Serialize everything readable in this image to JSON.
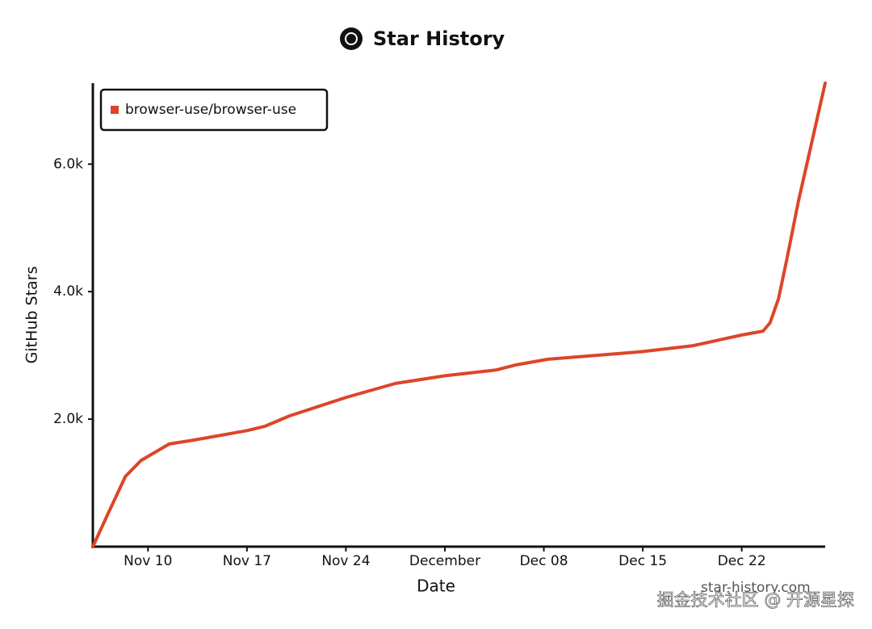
{
  "chart_data": {
    "type": "line",
    "title": "Star History",
    "x_label": "Date",
    "y_label": "GitHub Stars",
    "x": [
      6.1,
      7.2,
      8.4,
      9.5,
      11.5,
      13.2,
      17,
      18.3,
      20,
      24,
      27.5,
      31,
      34.6,
      36,
      38.3,
      41.7,
      45,
      48.5,
      52,
      53.5,
      54,
      54.6,
      55.2,
      56,
      56.9,
      57.9
    ],
    "series": [
      {
        "name": "browser-use/browser-use",
        "color": "#dd4528",
        "values": [
          0,
          530,
          1100,
          1350,
          1610,
          1670,
          1820,
          1890,
          2050,
          2340,
          2560,
          2680,
          2770,
          2850,
          2940,
          3000,
          3060,
          3150,
          3320,
          3380,
          3510,
          3890,
          4520,
          5410,
          6290,
          7270
        ]
      }
    ],
    "xlim": [
      6.1,
      57.9
    ],
    "xticks": [
      {
        "value": 10,
        "label": "Nov 10"
      },
      {
        "value": 17,
        "label": "Nov 17"
      },
      {
        "value": 24,
        "label": "Nov 24"
      },
      {
        "value": 31,
        "label": "December"
      },
      {
        "value": 38,
        "label": "Dec 08"
      },
      {
        "value": 45,
        "label": "Dec 15"
      },
      {
        "value": 52,
        "label": "Dec 22"
      }
    ],
    "ylim": [
      0,
      7270
    ],
    "yticks": [
      {
        "value": 2000,
        "label": "2.0k"
      },
      {
        "value": 4000,
        "label": "4.0k"
      },
      {
        "value": 6000,
        "label": "6.0k"
      }
    ],
    "legend": "top-left",
    "grid": false,
    "watermark": "star-history.com",
    "credit": "掘金技术社区 @ 开源星探"
  }
}
